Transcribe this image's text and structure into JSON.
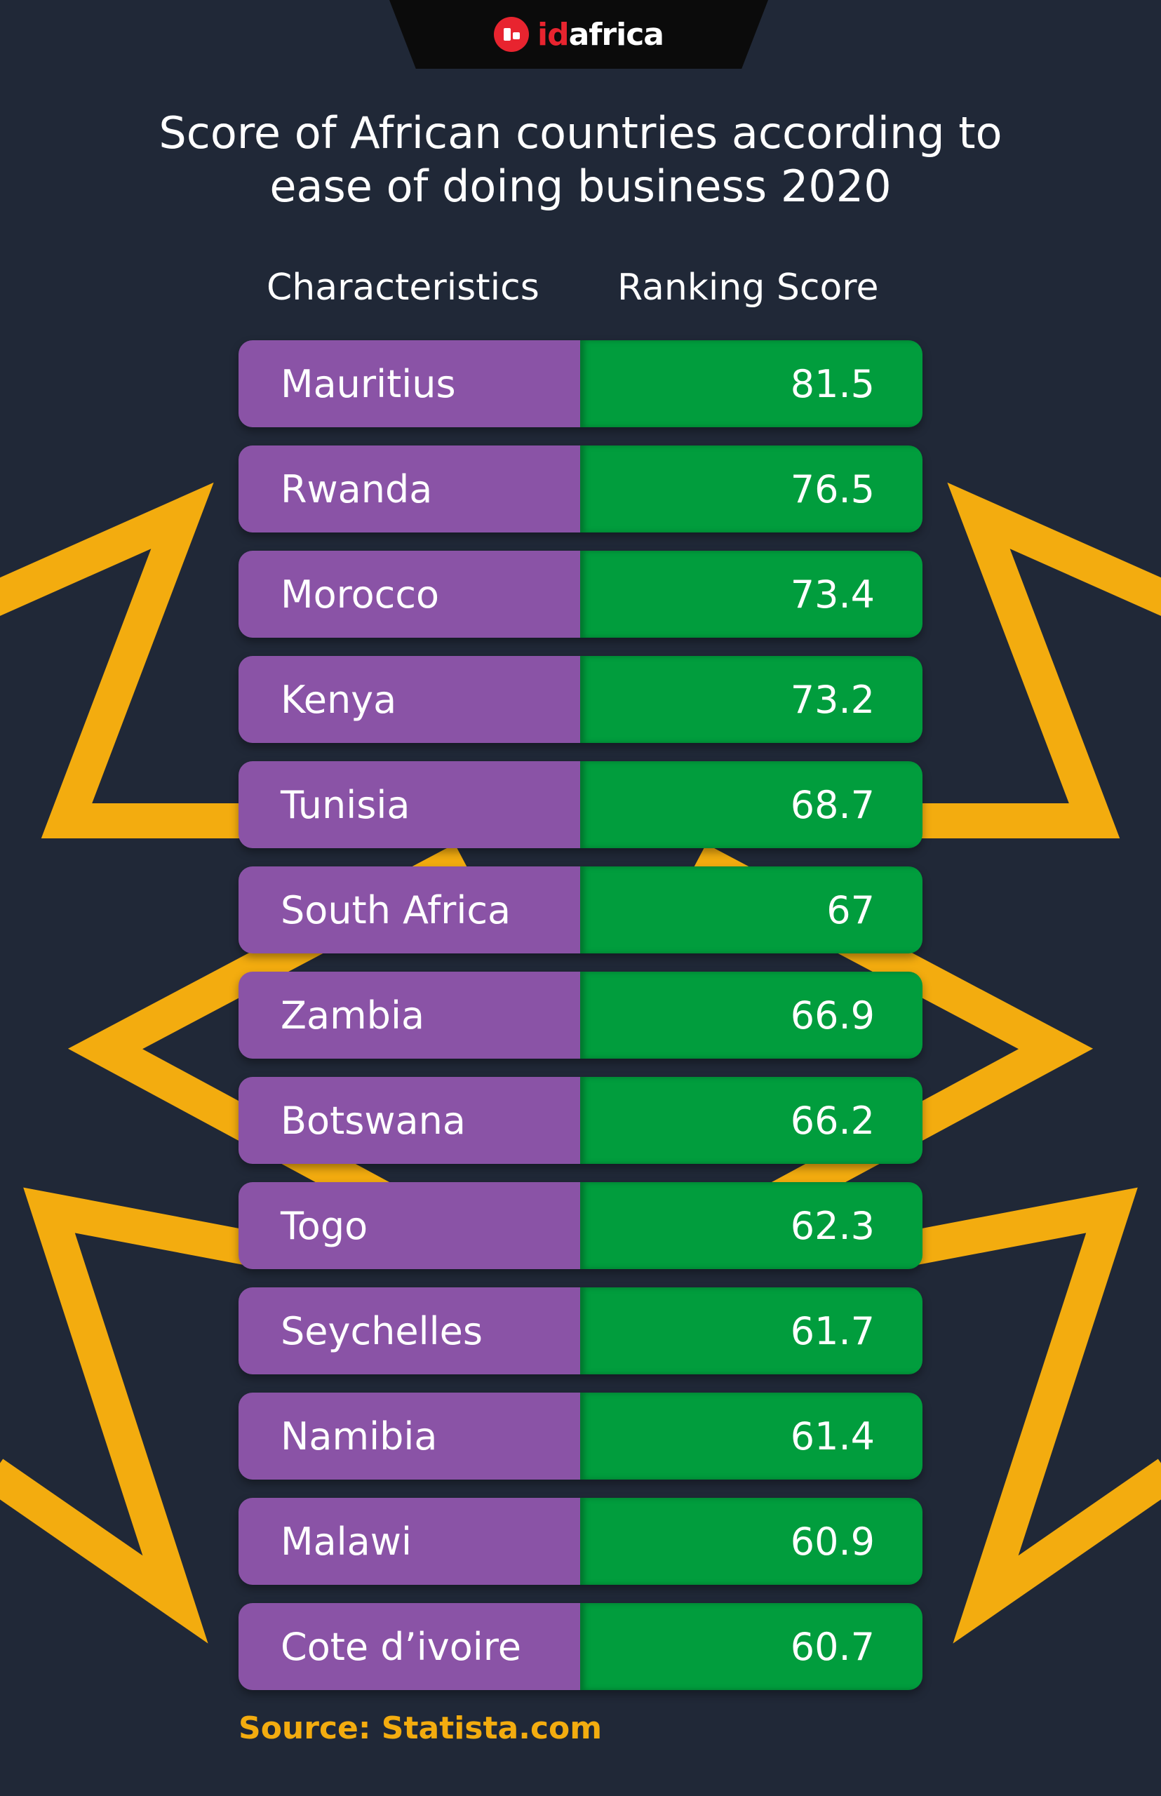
{
  "brand": {
    "prefix": "id",
    "suffix": "africa",
    "accent": "#e8242f"
  },
  "title_lines": [
    "Score of African countries according to",
    "ease of doing business 2020"
  ],
  "headers": {
    "left": "Characteristics",
    "right": "Ranking Score"
  },
  "source": "Source: Statista.com",
  "colors": {
    "background": "#202837",
    "name_cell": "#8a53a6",
    "score_cell": "#019d3d",
    "decoration": "#f3ac0f"
  },
  "chart_data": {
    "type": "table",
    "title": "Score of African countries according to ease of doing business 2020",
    "columns": [
      "Characteristics",
      "Ranking Score"
    ],
    "rows": [
      {
        "name": "Mauritius",
        "score": "81.5"
      },
      {
        "name": "Rwanda",
        "score": "76.5"
      },
      {
        "name": "Morocco",
        "score": "73.4"
      },
      {
        "name": "Kenya",
        "score": "73.2"
      },
      {
        "name": "Tunisia",
        "score": "68.7"
      },
      {
        "name": "South Africa",
        "score": "67"
      },
      {
        "name": "Zambia",
        "score": "66.9"
      },
      {
        "name": "Botswana",
        "score": "66.2"
      },
      {
        "name": "Togo",
        "score": "62.3"
      },
      {
        "name": "Seychelles",
        "score": "61.7"
      },
      {
        "name": "Namibia",
        "score": "61.4"
      },
      {
        "name": "Malawi",
        "score": "60.9"
      },
      {
        "name": "Cote d’ivoire",
        "score": "60.7"
      }
    ]
  }
}
